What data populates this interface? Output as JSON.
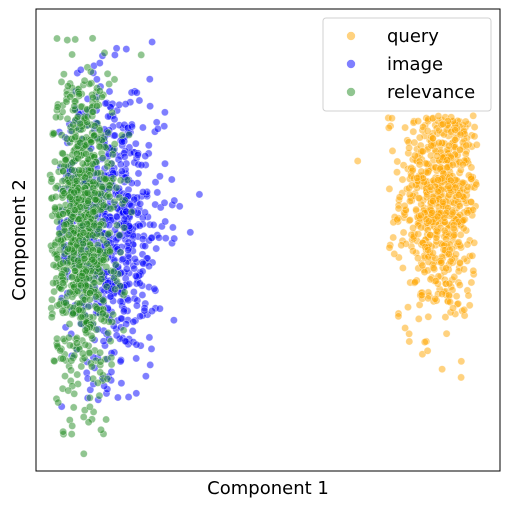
{
  "chart_data": {
    "type": "scatter",
    "xlabel": "Component 1",
    "ylabel": "Component 2",
    "xlim": [
      0,
      100
    ],
    "ylim": [
      0,
      100
    ],
    "xticks": false,
    "yticks": false,
    "grid": false,
    "legend_position": "top-right",
    "series": [
      {
        "name": "query",
        "color": "#FFA500",
        "distribution": "gaussian cluster",
        "center": [
          87.5,
          60.5
        ],
        "spread": [
          4.5,
          14
        ],
        "range_x": [
          62,
          95
        ],
        "range_y": [
          20,
          77
        ],
        "count": 700
      },
      {
        "name": "image",
        "color": "#0000FF",
        "distribution": "gaussian cluster",
        "center": [
          16,
          53
        ],
        "spread": [
          6,
          16
        ],
        "range_x": [
          5,
          37
        ],
        "range_y": [
          11,
          93
        ],
        "count": 700
      },
      {
        "name": "relevance",
        "color": "#228B22",
        "distribution": "gaussian cluster",
        "center": [
          10,
          53
        ],
        "spread": [
          3.5,
          17
        ],
        "range_x": [
          3,
          25
        ],
        "range_y": [
          3,
          94
        ],
        "count": 900
      }
    ]
  }
}
